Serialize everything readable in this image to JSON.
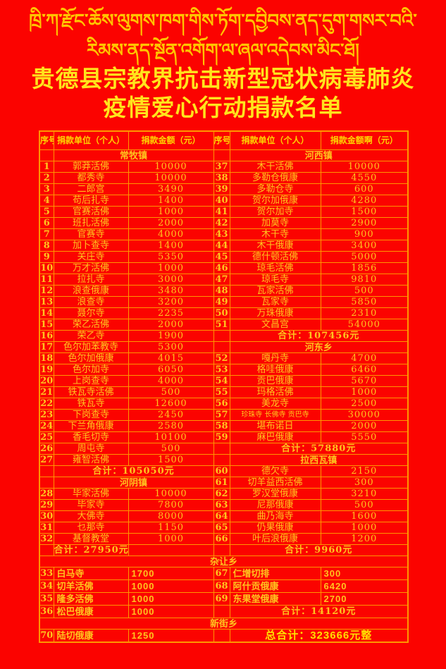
{
  "poster": {
    "tibetan_line1": "ཁྲི་ཀ་རྫོང་ཆོས་ལུགས་ཁག་གིས་ཏོག་དབྱིབས་ནད་དུག་གསར་བའི་",
    "tibetan_line2": "རིམས་ནད་སྔོན་འགོག་ལ་ཞལ་འདེབས་མིང་ཐོ།",
    "title_line1": "贵德县宗教界抗击新型冠状病毒肺炎",
    "title_line2": "疫情爱心行动捐款名单"
  },
  "colors": {
    "background_red": "#fb0300",
    "border_orange": "#ff9600",
    "text_gold": "#ffc41e",
    "title_yellow": "#ffe41c",
    "section_yellow": "#ffdf00"
  },
  "table": {
    "columns": [
      "序号",
      "捐款单位（个人）",
      "捐款金额（元）",
      "序号",
      "捐款单位（个人）",
      "捐款金额啊（元）"
    ],
    "rows": [
      {
        "t": "head"
      },
      {
        "t": "pair",
        "l": {
          "s": "常牧镇"
        },
        "r": {
          "s": "河西镇"
        }
      },
      {
        "t": "pair",
        "l": {
          "n": "1",
          "u": "郭莽活佛",
          "a": "10000"
        },
        "r": {
          "n": "37",
          "u": "木干活佛",
          "a": "10000"
        }
      },
      {
        "t": "pair",
        "l": {
          "n": "2",
          "u": "都秀寺",
          "a": "10000"
        },
        "r": {
          "n": "38",
          "u": "多勒仓俄康",
          "a": "4550"
        }
      },
      {
        "t": "pair",
        "l": {
          "n": "3",
          "u": "二郎宫",
          "a": "3490"
        },
        "r": {
          "n": "39",
          "u": "多勒仓寺",
          "a": "600"
        }
      },
      {
        "t": "pair",
        "l": {
          "n": "4",
          "u": "苟后扎寺",
          "a": "1400"
        },
        "r": {
          "n": "40",
          "u": "贺尔加俄康",
          "a": "4280"
        }
      },
      {
        "t": "pair",
        "l": {
          "n": "5",
          "u": "官赛活佛",
          "a": "1000"
        },
        "r": {
          "n": "41",
          "u": "贺尔加寺",
          "a": "1500"
        }
      },
      {
        "t": "pair",
        "l": {
          "n": "6",
          "u": "班扎活佛",
          "a": "2000"
        },
        "r": {
          "n": "42",
          "u": "加莫寺",
          "a": "2900"
        }
      },
      {
        "t": "pair",
        "l": {
          "n": "7",
          "u": "官赛寺",
          "a": "4000"
        },
        "r": {
          "n": "43",
          "u": "木干寺",
          "a": "900"
        }
      },
      {
        "t": "pair",
        "l": {
          "n": "8",
          "u": "加卜查寺",
          "a": "1400"
        },
        "r": {
          "n": "44",
          "u": "木干俄康",
          "a": "3400"
        }
      },
      {
        "t": "pair",
        "l": {
          "n": "9",
          "u": "关庄寺",
          "a": "5350"
        },
        "r": {
          "n": "45",
          "u": "德什顿活佛",
          "a": "5000"
        }
      },
      {
        "t": "pair",
        "l": {
          "n": "10",
          "u": "万才活佛",
          "a": "1000"
        },
        "r": {
          "n": "46",
          "u": "琼毛活佛",
          "a": "1856"
        }
      },
      {
        "t": "pair",
        "l": {
          "n": "11",
          "u": "拉扎寺",
          "a": "3000"
        },
        "r": {
          "n": "47",
          "u": "琼毛寺",
          "a": "9810"
        }
      },
      {
        "t": "pair",
        "l": {
          "n": "12",
          "u": "浪查俄康",
          "a": "3480"
        },
        "r": {
          "n": "48",
          "u": "瓦家活佛",
          "a": "500"
        }
      },
      {
        "t": "pair",
        "l": {
          "n": "13",
          "u": "浪查寺",
          "a": "3200"
        },
        "r": {
          "n": "49",
          "u": "瓦家寺",
          "a": "5850"
        }
      },
      {
        "t": "pair",
        "l": {
          "n": "14",
          "u": "聂尔寺",
          "a": "2235"
        },
        "r": {
          "n": "50",
          "u": "万珠俄康",
          "a": "2310"
        }
      },
      {
        "t": "pair",
        "l": {
          "n": "15",
          "u": "荣乙活佛",
          "a": "2000"
        },
        "r": {
          "n": "51",
          "u": "文昌宫",
          "a": "54000"
        }
      },
      {
        "t": "pair",
        "l": {
          "n": "16",
          "u": "荣乙寺",
          "a": "1900"
        },
        "r": {
          "tot": "合计：107456元"
        }
      },
      {
        "t": "pair",
        "l": {
          "n": "17",
          "u": "色尔加苯教寺",
          "a": "5300"
        },
        "r": {
          "s": "河东乡"
        }
      },
      {
        "t": "pair",
        "l": {
          "n": "18",
          "u": "色尔加俄康",
          "a": "4015"
        },
        "r": {
          "n": "52",
          "u": "嘎丹寺",
          "a": "4700"
        }
      },
      {
        "t": "pair",
        "l": {
          "n": "19",
          "u": "色尔加寺",
          "a": "6050"
        },
        "r": {
          "n": "53",
          "u": "格哇俄康",
          "a": "6460"
        }
      },
      {
        "t": "pair",
        "l": {
          "n": "20",
          "u": "上岗查寺",
          "a": "4000"
        },
        "r": {
          "n": "54",
          "u": "贡巴俄康",
          "a": "5670"
        }
      },
      {
        "t": "pair",
        "l": {
          "n": "21",
          "u": "铁瓦寺活佛",
          "a": "500"
        },
        "r": {
          "n": "55",
          "u": "玛格活佛",
          "a": "1000"
        }
      },
      {
        "t": "pair",
        "l": {
          "n": "22",
          "u": "铁瓦寺",
          "a": "12600"
        },
        "r": {
          "n": "56",
          "u": "美龙寺",
          "a": "2500"
        }
      },
      {
        "t": "pair",
        "l": {
          "n": "23",
          "u": "下岗查寺",
          "a": "2450"
        },
        "r": {
          "n": "57",
          "u": "珍珠寺 长佛寺 贡巴寺",
          "a": "30000",
          "sm": 1
        }
      },
      {
        "t": "pair",
        "l": {
          "n": "24",
          "u": "下兰角俄康",
          "a": "2580"
        },
        "r": {
          "n": "58",
          "u": "堪布诺日",
          "a": "2000"
        }
      },
      {
        "t": "pair",
        "l": {
          "n": "25",
          "u": "香毛切寺",
          "a": "10100"
        },
        "r": {
          "n": "59",
          "u": "麻巴俄康",
          "a": "5550"
        }
      },
      {
        "t": "pair",
        "l": {
          "n": "26",
          "u": "周屯寺",
          "a": "500"
        },
        "r": {
          "tot": "合计：57880元"
        }
      },
      {
        "t": "pair",
        "l": {
          "n": "27",
          "u": "雍智活佛",
          "a": "1500"
        },
        "r": {
          "s": "拉西瓦镇"
        }
      },
      {
        "t": "pair",
        "l": {
          "tot": "合计：105050元"
        },
        "r": {
          "n": "60",
          "u": "德欠寺",
          "a": "2150"
        }
      },
      {
        "t": "pair",
        "l": {
          "s": "河阴镇"
        },
        "r": {
          "n": "61",
          "u": "切羊益西活佛",
          "a": "300"
        }
      },
      {
        "t": "pair",
        "l": {
          "n": "28",
          "u": "毕家活佛",
          "a": "10000"
        },
        "r": {
          "n": "62",
          "u": "罗汉堂俄康",
          "a": "3210"
        }
      },
      {
        "t": "pair",
        "l": {
          "n": "29",
          "u": "毕家寺",
          "a": "7800"
        },
        "r": {
          "n": "63",
          "u": "尼那俄康",
          "a": "500"
        }
      },
      {
        "t": "pair",
        "l": {
          "n": "30",
          "u": "大佛寺",
          "a": "8000"
        },
        "r": {
          "n": "64",
          "u": "曲乃海寺",
          "a": "1600"
        }
      },
      {
        "t": "pair",
        "l": {
          "n": "31",
          "u": "乜那寺",
          "a": "1150"
        },
        "r": {
          "n": "65",
          "u": "仍果俄康",
          "a": "1000"
        }
      },
      {
        "t": "pair",
        "l": {
          "n": "32",
          "u": "基督教堂",
          "a": "1000"
        },
        "r": {
          "n": "66",
          "u": "叶后浪俄康",
          "a": "1200"
        }
      },
      {
        "t": "pair",
        "l": {
          "tot1": "合计：27950元"
        },
        "r": {
          "tot": "合计：9960元"
        }
      },
      {
        "t": "span",
        "v": "杂让乡"
      },
      {
        "t": "pair",
        "c": "lft",
        "l": {
          "n": "33",
          "u": "白马寺",
          "a": "1700"
        },
        "r": {
          "n": "67",
          "u": "仁增切排",
          "a": "300"
        }
      },
      {
        "t": "pair",
        "c": "lft",
        "l": {
          "n": "34",
          "u": "切羊活佛",
          "a": "1000"
        },
        "r": {
          "n": "68",
          "u": "阿什贡俄康",
          "a": "6420"
        }
      },
      {
        "t": "pair",
        "c": "lft",
        "l": {
          "n": "35",
          "u": "隆多活佛",
          "a": "1000"
        },
        "r": {
          "n": "69",
          "u": "东果堂俄康",
          "a": "2700"
        }
      },
      {
        "t": "pair",
        "c": "lft",
        "l": {
          "n": "36",
          "u": "松巴俄康",
          "a": "1000"
        },
        "r": {
          "tot": "合计：14120元"
        }
      },
      {
        "t": "span",
        "v": "新街乡"
      },
      {
        "t": "pair",
        "c": "lft",
        "l": {
          "n": "70",
          "u": "陆切俄康",
          "a": "1250"
        },
        "r": {
          "g": "总合计：323666元整"
        }
      }
    ]
  }
}
